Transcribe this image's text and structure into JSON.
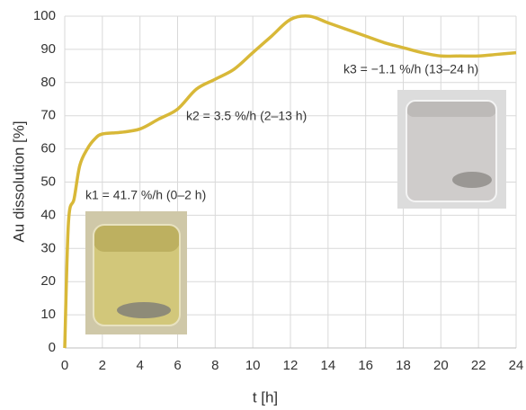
{
  "chart_data": {
    "type": "line",
    "x": [
      0,
      0.2,
      0.5,
      0.8,
      1.2,
      1.6,
      2,
      3,
      4,
      5,
      6,
      7,
      8,
      9,
      10,
      11,
      12,
      13,
      14,
      15,
      16,
      17,
      18,
      19,
      20,
      21,
      22,
      23,
      24
    ],
    "values": [
      0,
      38,
      45,
      55,
      60,
      63,
      64.5,
      65,
      66,
      69,
      72,
      78,
      81,
      84,
      89,
      94,
      99,
      100,
      98,
      96,
      94,
      92,
      90.5,
      89,
      88,
      88,
      88,
      88.5,
      89
    ],
    "color": "#d8b838",
    "xlabel": "t [h]",
    "ylabel": "Au dissolution [%]",
    "xlim": [
      0,
      24
    ],
    "xticks": [
      0,
      2,
      4,
      6,
      8,
      10,
      12,
      14,
      16,
      18,
      20,
      22,
      24
    ],
    "ylim": [
      0,
      100
    ],
    "yticks": [
      0,
      10,
      20,
      30,
      40,
      50,
      60,
      70,
      80,
      90,
      100
    ],
    "grid": true,
    "annotations": [
      "k1 = 41.7 %/h (0–2 h)",
      "k2 = 3.5 %/h (2–13 h)",
      "k3 = −1.1 %/h (13–24 h)"
    ]
  }
}
